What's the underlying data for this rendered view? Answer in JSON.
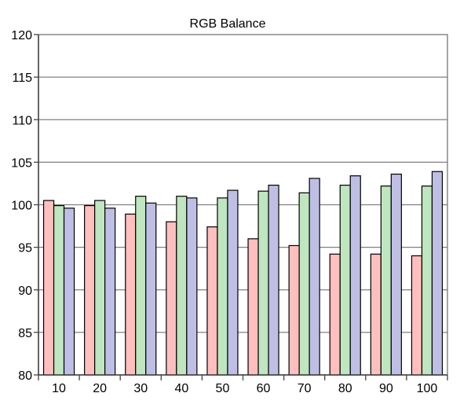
{
  "chart_data": {
    "type": "bar",
    "title": "RGB Balance",
    "xlabel": "",
    "ylabel": "",
    "categories": [
      "10",
      "20",
      "30",
      "40",
      "50",
      "60",
      "70",
      "80",
      "90",
      "100"
    ],
    "ylim": [
      80,
      120
    ],
    "yticks": [
      "80",
      "85",
      "90",
      "95",
      "100",
      "105",
      "110",
      "115",
      "120"
    ],
    "grid": true,
    "series": [
      {
        "values": [
          100.5,
          99.9,
          98.9,
          98.0,
          97.4,
          96.0,
          95.2,
          94.2,
          94.2,
          94.0
        ],
        "color": "#ffbfbf"
      },
      {
        "values": [
          99.9,
          100.5,
          101.0,
          101.0,
          100.8,
          101.6,
          101.4,
          102.3,
          102.2,
          102.2
        ],
        "color": "#bfe6bf"
      },
      {
        "values": [
          99.6,
          99.6,
          100.2,
          100.8,
          101.7,
          102.3,
          103.1,
          103.4,
          103.6,
          103.9
        ],
        "color": "#bfbfe6"
      }
    ]
  }
}
